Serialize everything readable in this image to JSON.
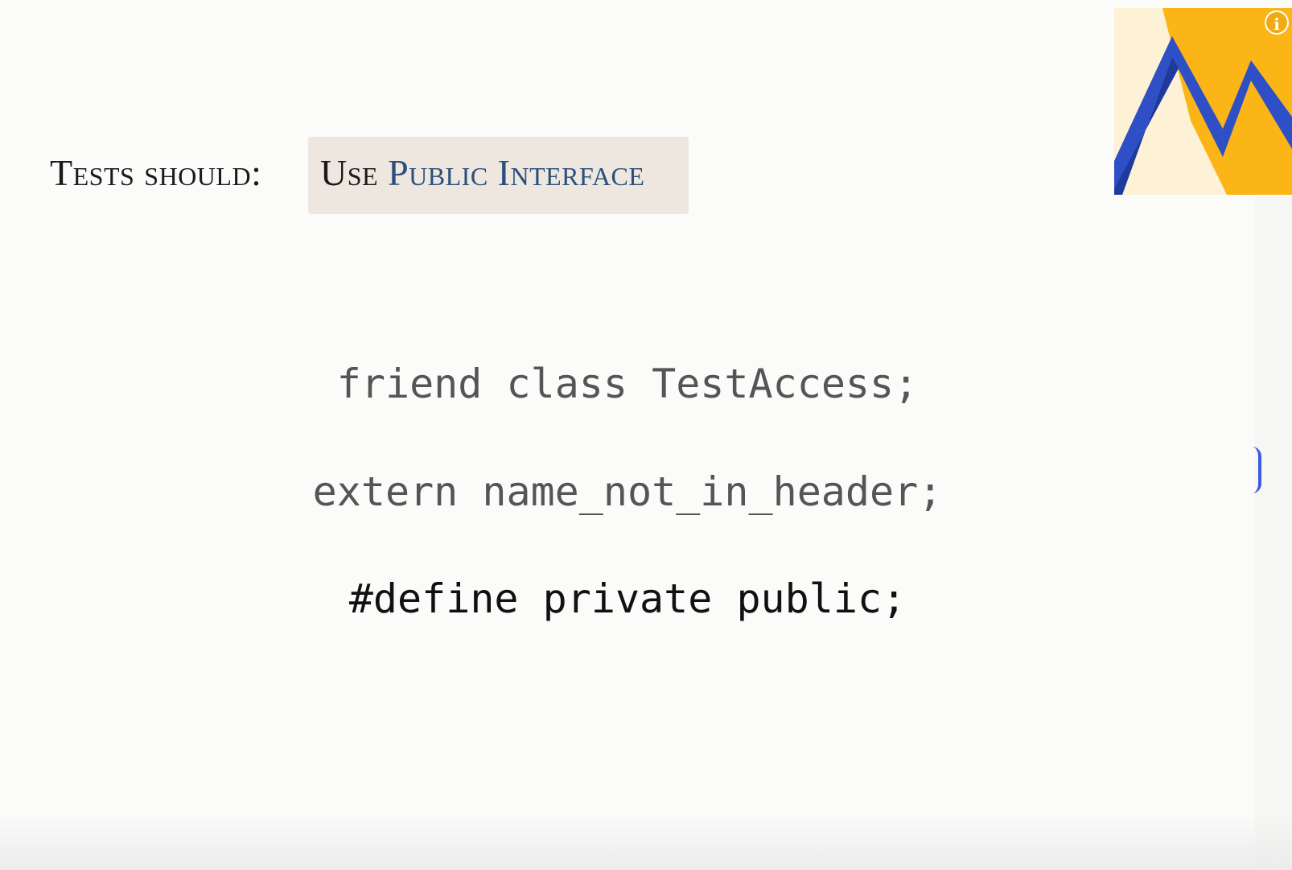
{
  "slide": {
    "heading": "Tests should:",
    "highlight": {
      "use_word": "Use",
      "public_interface": "Public Interface"
    },
    "code_lines": [
      "friend class TestAccess;",
      "extern name_not_in_header;",
      "#define private public;"
    ]
  },
  "overlay": {
    "info_icon_glyph": "i"
  },
  "colors": {
    "heading": "#1a1a1a",
    "highlight_bg": "#ede7df",
    "highlight_accent": "#2b4f7a",
    "code_muted": "#555555",
    "code_emphasis": "#111111",
    "logo_yellow": "#fbb517",
    "logo_blue": "#3b5bdb"
  },
  "icons": {
    "logo": "mountain-m-logo-icon",
    "info": "info-icon"
  }
}
